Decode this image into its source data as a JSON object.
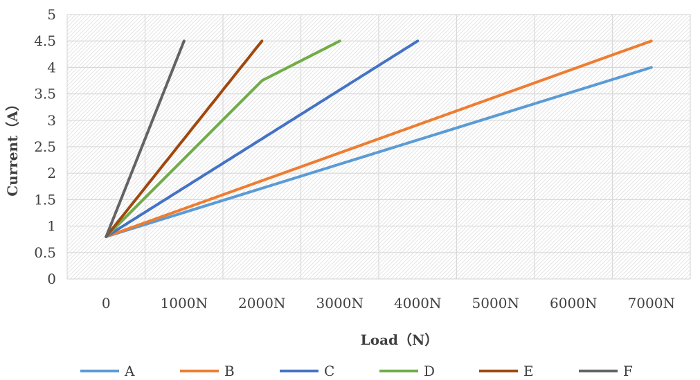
{
  "chart_data": {
    "type": "line",
    "xlabel": "Load（N）",
    "ylabel": "Current（A）",
    "categories": [
      "0",
      "1000N",
      "2000N",
      "3000N",
      "4000N",
      "5000N",
      "6000N",
      "7000N"
    ],
    "x_values": [
      0,
      1000,
      2000,
      3000,
      4000,
      5000,
      6000,
      7000
    ],
    "ylim": [
      0,
      5
    ],
    "y_ticks": [
      "0",
      "0.5",
      "1",
      "1.5",
      "2",
      "2.5",
      "3",
      "3.5",
      "4",
      "4.5",
      "5"
    ],
    "grid": true,
    "legend_position": "bottom",
    "series": [
      {
        "name": "A",
        "color": "#5B9BD5",
        "x": [
          0,
          7000
        ],
        "y": [
          0.8,
          4.0
        ]
      },
      {
        "name": "B",
        "color": "#ED7D31",
        "x": [
          0,
          7000
        ],
        "y": [
          0.8,
          4.5
        ]
      },
      {
        "name": "C",
        "color": "#4472C4",
        "x": [
          0,
          4000
        ],
        "y": [
          0.8,
          4.5
        ]
      },
      {
        "name": "D",
        "color": "#70AD47",
        "x": [
          0,
          2000,
          3000
        ],
        "y": [
          0.8,
          3.75,
          4.5
        ]
      },
      {
        "name": "E",
        "color": "#9E480E",
        "x": [
          0,
          2000
        ],
        "y": [
          0.8,
          4.5
        ]
      },
      {
        "name": "F",
        "color": "#636363",
        "x": [
          0,
          1000
        ],
        "y": [
          0.8,
          4.5
        ]
      }
    ]
  }
}
